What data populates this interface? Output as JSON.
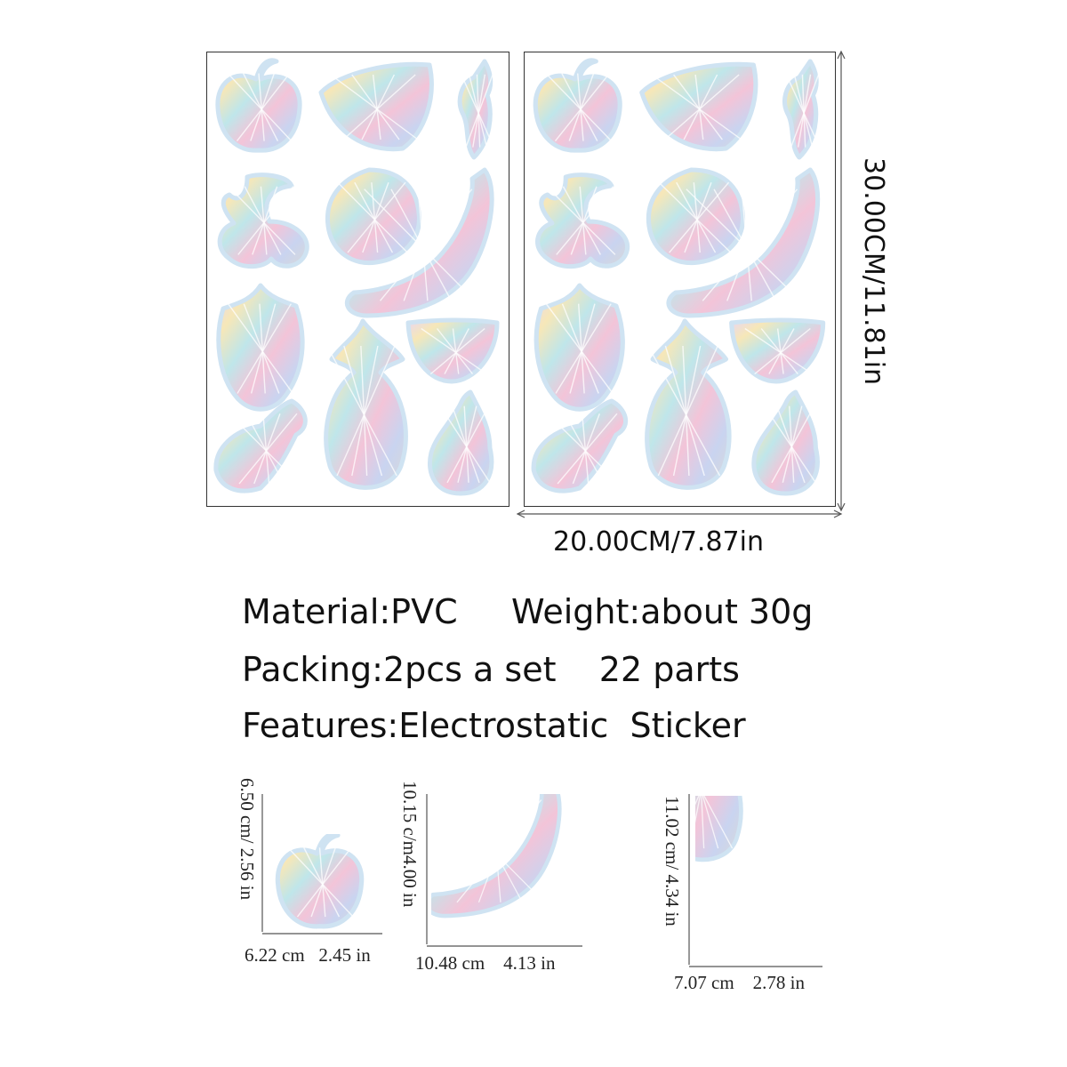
{
  "sheet_dimensions": {
    "height_label": "30.00CM/11.81in",
    "width_label": "20.00CM/7.87in"
  },
  "sheets": [
    {
      "name": "left-sheet",
      "stickers": [
        "apple",
        "watermelon",
        "chili",
        "cherry",
        "orange",
        "banana",
        "strawberry",
        "lemon",
        "grapes",
        "pineapple",
        "pear"
      ]
    },
    {
      "name": "right-sheet",
      "stickers": [
        "apple",
        "watermelon",
        "chili",
        "cherry",
        "orange",
        "banana",
        "strawberry",
        "lemon",
        "grapes",
        "pineapple",
        "pear"
      ]
    }
  ],
  "specs": {
    "line1": "Material:PVC     Weight:about 30g",
    "line2": "Packing:2pcs a set    22 parts",
    "line3": "Features:Electrostatic  Sticker"
  },
  "samples": [
    {
      "sticker": "apple",
      "height_label": "6.50 cm/ 2.56 in",
      "width_label": "6.22 cm   2.45 in"
    },
    {
      "sticker": "banana",
      "height_label": "10.15 c/m4.00 in",
      "width_label": "10.48 cm    4.13 in"
    },
    {
      "sticker": "pineapple",
      "height_label": "11.02 cm/ 4.34 in",
      "width_label": "7.07 cm    2.78 in"
    }
  ],
  "colors": {
    "outline": "#cfe3f2",
    "holo": [
      "#e8d6f2",
      "#f6e7b8",
      "#bfe6ea",
      "#f3c4d8",
      "#c9d4f0",
      "#d8d8d8"
    ]
  }
}
